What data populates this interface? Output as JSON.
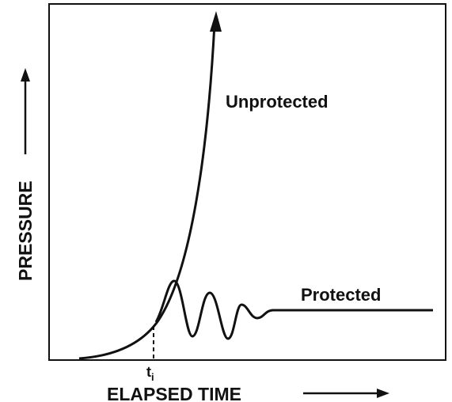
{
  "axes": {
    "y_label": "PRESSURE",
    "x_label": "ELAPSED TIME"
  },
  "curves": [
    {
      "label": "Unprotected"
    },
    {
      "label": "Protected"
    }
  ],
  "marker": {
    "symbol": "t",
    "subscript": "i"
  }
}
